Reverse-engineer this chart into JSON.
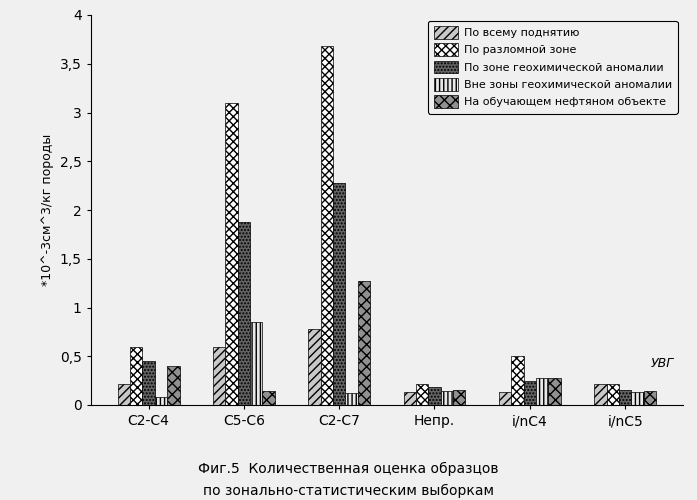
{
  "categories": [
    "C2-C4",
    "C5-C6",
    "C2-C7",
    "Непр.",
    "i/nC4",
    "i/nC5"
  ],
  "series": [
    {
      "label": "По всему поднятию",
      "values": [
        0.22,
        0.6,
        0.78,
        0.13,
        0.13,
        0.22
      ],
      "hatch": "////",
      "facecolor": "#c8c8c8",
      "edgecolor": "#000000"
    },
    {
      "label": "По разломной зоне",
      "values": [
        0.6,
        3.1,
        3.68,
        0.22,
        0.5,
        0.22
      ],
      "hatch": "xxxx",
      "facecolor": "#ffffff",
      "edgecolor": "#000000"
    },
    {
      "label": "По зоне геохимической аномалии",
      "values": [
        0.45,
        1.88,
        2.28,
        0.18,
        0.25,
        0.15
      ],
      "hatch": ".....",
      "facecolor": "#646464",
      "edgecolor": "#000000"
    },
    {
      "label": "Вне зоны геохимической аномалии",
      "values": [
        0.08,
        0.85,
        0.12,
        0.14,
        0.28,
        0.13
      ],
      "hatch": "||||",
      "facecolor": "#e8e8e8",
      "edgecolor": "#000000"
    },
    {
      "label": "На обучающем нефтяном объекте",
      "values": [
        0.4,
        0.14,
        1.27,
        0.15,
        0.28,
        0.14
      ],
      "hatch": "xxx",
      "facecolor": "#909090",
      "edgecolor": "#000000"
    }
  ],
  "ylabel": "*10^-3см^3/кг породы",
  "ylim": [
    0,
    4
  ],
  "yticks": [
    0,
    0.5,
    1.0,
    1.5,
    2.0,
    2.5,
    3.0,
    3.5,
    4.0
  ],
  "ytick_labels": [
    "0",
    "0,5",
    "1",
    "1,5",
    "2",
    "2,5",
    "3",
    "3,5",
    "4"
  ],
  "caption_line1": "Фиг.5  Количественная оценка образцов",
  "caption_line2": "по зонально-статистическим выборкам",
  "uvg_label": "УВГ",
  "background_color": "#f0f0f0",
  "bar_width": 0.13
}
